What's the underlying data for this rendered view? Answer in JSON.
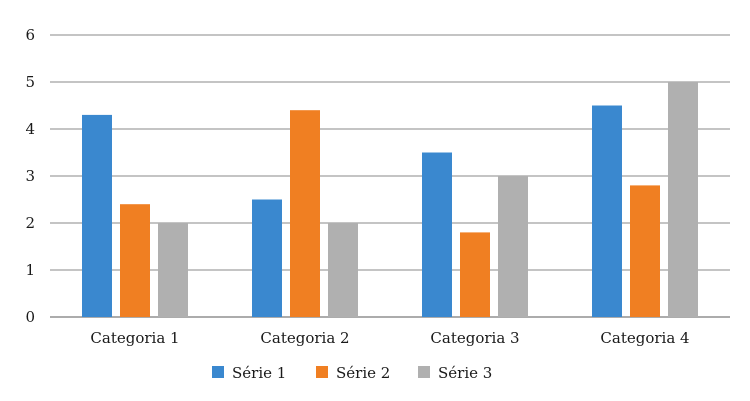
{
  "chart_data": {
    "type": "bar",
    "categories": [
      "Categoria 1",
      "Categoria 2",
      "Categoria 3",
      "Categoria 4"
    ],
    "series": [
      {
        "name": "Série 1",
        "color": "#3a88cf",
        "values": [
          4.3,
          2.5,
          3.5,
          4.5
        ]
      },
      {
        "name": "Série 2",
        "color": "#f07f22",
        "values": [
          2.4,
          4.4,
          1.8,
          2.8
        ]
      },
      {
        "name": "Série 3",
        "color": "#b0b0b0",
        "values": [
          2.0,
          2.0,
          3.0,
          5.0
        ]
      }
    ],
    "ylim": [
      0,
      6
    ],
    "yticks": [
      "0",
      "1",
      "2",
      "3",
      "4",
      "5",
      "6"
    ],
    "grid": true,
    "legend_position": "bottom"
  }
}
